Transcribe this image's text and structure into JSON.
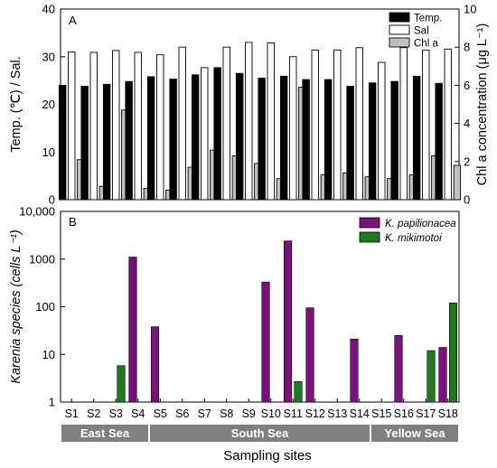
{
  "chart_data": [
    {
      "type": "bar",
      "panel_label": "A",
      "categories": [
        "S1",
        "S2",
        "S3",
        "S4",
        "S5",
        "S6",
        "S7",
        "S8",
        "S9",
        "S10",
        "S11",
        "S12",
        "S13",
        "S14",
        "S15",
        "S16",
        "S17",
        "S18"
      ],
      "ylabel": "Temp. (℃) / Sal.",
      "y2label": "Chl a concentration (μg L⁻¹)",
      "ylim": [
        0,
        40
      ],
      "y2lim": [
        0,
        10
      ],
      "yticks": [
        "0",
        "10",
        "20",
        "30",
        "40"
      ],
      "y2ticks": [
        "0",
        "2",
        "4",
        "6",
        "8",
        "10"
      ],
      "legend_position": "top-right",
      "series": [
        {
          "name": "Temp.",
          "axis": "left",
          "color": "#000000",
          "values": [
            24.0,
            23.8,
            24.2,
            24.8,
            25.8,
            25.3,
            26.2,
            27.7,
            26.5,
            25.5,
            25.9,
            25.2,
            25.2,
            23.8,
            24.5,
            24.8,
            25.9,
            24.4
          ]
        },
        {
          "name": "Sal",
          "axis": "left",
          "color": "#ffffff",
          "values": [
            31.0,
            30.9,
            31.3,
            30.9,
            30.4,
            32.0,
            27.7,
            32.0,
            33.0,
            32.9,
            30.0,
            31.4,
            31.4,
            31.9,
            28.8,
            31.9,
            31.4,
            31.6
          ]
        },
        {
          "name": "Chl a",
          "axis": "right",
          "color": "#c0c0c0",
          "values": [
            2.1,
            0.7,
            4.7,
            0.6,
            0.5,
            1.7,
            2.6,
            2.3,
            1.9,
            1.1,
            5.9,
            1.3,
            1.4,
            1.2,
            1.1,
            1.3,
            2.3,
            1.8
          ]
        }
      ]
    },
    {
      "type": "bar",
      "panel_label": "B",
      "categories": [
        "S1",
        "S2",
        "S3",
        "S4",
        "S5",
        "S6",
        "S7",
        "S8",
        "S9",
        "S10",
        "S11",
        "S12",
        "S13",
        "S14",
        "S15",
        "S16",
        "S17",
        "S18"
      ],
      "ylabel": "Karenia species (cells L⁻¹)",
      "xlabel": "Sampling sites",
      "scale": "log",
      "ylim": [
        1,
        10000
      ],
      "yticks": [
        "1",
        "10",
        "100",
        "1000",
        "10,000"
      ],
      "legend_position": "top-right",
      "series": [
        {
          "name": "K. papilionacea",
          "color": "#7b127b",
          "values": [
            null,
            null,
            null,
            1100,
            38,
            null,
            null,
            null,
            null,
            330,
            2400,
            95,
            null,
            21,
            null,
            25,
            null,
            14
          ]
        },
        {
          "name": "K. mikimotoi",
          "color": "#1e7a1e",
          "values": [
            null,
            null,
            5.8,
            null,
            null,
            null,
            null,
            null,
            null,
            null,
            2.7,
            null,
            null,
            null,
            null,
            null,
            12,
            120
          ]
        }
      ],
      "regions": [
        {
          "label": "East Sea",
          "from": "S1",
          "to": "S4"
        },
        {
          "label": "South Sea",
          "from": "S5",
          "to": "S14"
        },
        {
          "label": "Yellow Sea",
          "from": "S15",
          "to": "S18"
        }
      ]
    }
  ]
}
